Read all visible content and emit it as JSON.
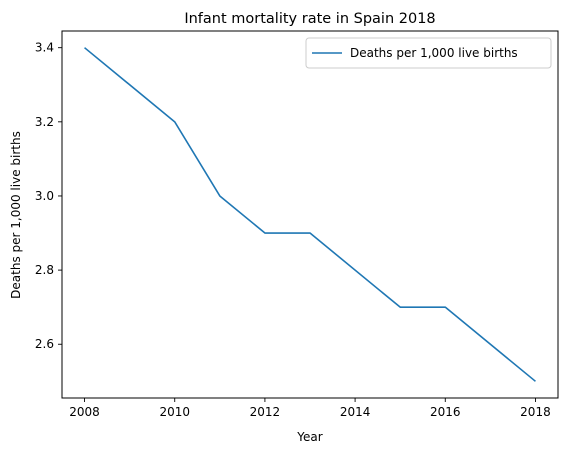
{
  "chart_data": {
    "type": "line",
    "title": "Infant mortality rate in Spain 2018",
    "xlabel": "Year",
    "ylabel": "Deaths per 1,000 live births",
    "x": [
      2008,
      2010,
      2011,
      2012,
      2013,
      2015,
      2016,
      2018
    ],
    "series": [
      {
        "name": "Deaths per 1,000 live births",
        "values": [
          3.4,
          3.2,
          3.0,
          2.9,
          2.9,
          2.7,
          2.7,
          2.5
        ],
        "color": "#1f77b4"
      }
    ],
    "xticks": [
      "2008",
      "2010",
      "2012",
      "2014",
      "2016",
      "2018"
    ],
    "yticks": [
      "2.6",
      "2.8",
      "3.0",
      "3.2",
      "3.4"
    ],
    "xlim": [
      2007.5,
      2018.5
    ],
    "ylim": [
      2.455,
      3.445
    ],
    "grid": false,
    "legend_position": "top-right"
  }
}
